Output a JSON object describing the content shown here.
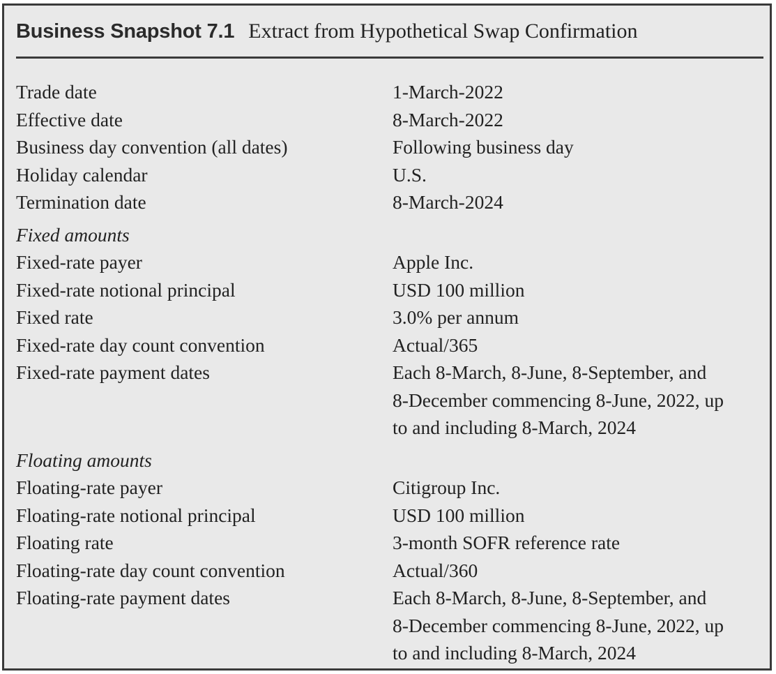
{
  "snapshot": {
    "label": "Business Snapshot 7.1",
    "title": "Extract from Hypothetical Swap Confirmation"
  },
  "general": [
    {
      "key": "Trade date",
      "value": "1-March-2022"
    },
    {
      "key": "Effective date",
      "value": "8-March-2022"
    },
    {
      "key": "Business day convention (all dates)",
      "value": "Following business day"
    },
    {
      "key": "Holiday calendar",
      "value": "U.S."
    },
    {
      "key": "Termination date",
      "value": "8-March-2024"
    }
  ],
  "fixed": {
    "heading": "Fixed amounts",
    "rows": [
      {
        "key": "Fixed-rate payer",
        "value": "Apple Inc."
      },
      {
        "key": "Fixed-rate notional principal",
        "value": "USD 100 million"
      },
      {
        "key": "Fixed rate",
        "value": "3.0% per annum"
      },
      {
        "key": "Fixed-rate day count convention",
        "value": "Actual/365"
      },
      {
        "key": "Fixed-rate payment dates",
        "value": "Each 8-March, 8-June, 8-September, and\n8-December commencing 8-June, 2022, up\nto and including 8-March, 2024"
      }
    ]
  },
  "floating": {
    "heading": "Floating amounts",
    "rows": [
      {
        "key": "Floating-rate payer",
        "value": "Citigroup Inc."
      },
      {
        "key": "Floating-rate notional principal",
        "value": "USD 100 million"
      },
      {
        "key": "Floating rate",
        "value": "3-month SOFR reference rate"
      },
      {
        "key": "Floating-rate day count convention",
        "value": "Actual/360"
      },
      {
        "key": "Floating-rate payment dates",
        "value": "Each 8-March, 8-June, 8-September, and\n8-December commencing 8-June, 2022, up\nto and including 8-March, 2024"
      }
    ]
  }
}
